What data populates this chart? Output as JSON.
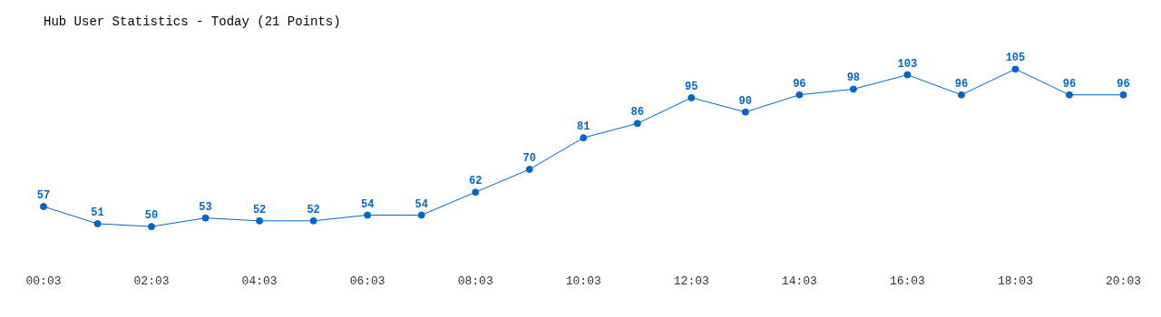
{
  "chart_data": {
    "type": "line",
    "title": "Hub User Statistics - Today (21 Points)",
    "categories": [
      "00:03",
      null,
      "02:03",
      null,
      "04:03",
      null,
      "06:03",
      null,
      "08:03",
      null,
      "10:03",
      null,
      "12:03",
      null,
      "14:03",
      null,
      "16:03",
      null,
      "18:03",
      null,
      "20:03"
    ],
    "series": [
      {
        "color": "#0066cc",
        "values": [
          57,
          51,
          50,
          53,
          52,
          52,
          54,
          54,
          62,
          70,
          81,
          86,
          95,
          90,
          96,
          98,
          103,
          96,
          105,
          96,
          96
        ]
      }
    ],
    "data_labels": true,
    "marker": "circle",
    "line_style": "solid",
    "grid": false,
    "legend": false
  }
}
